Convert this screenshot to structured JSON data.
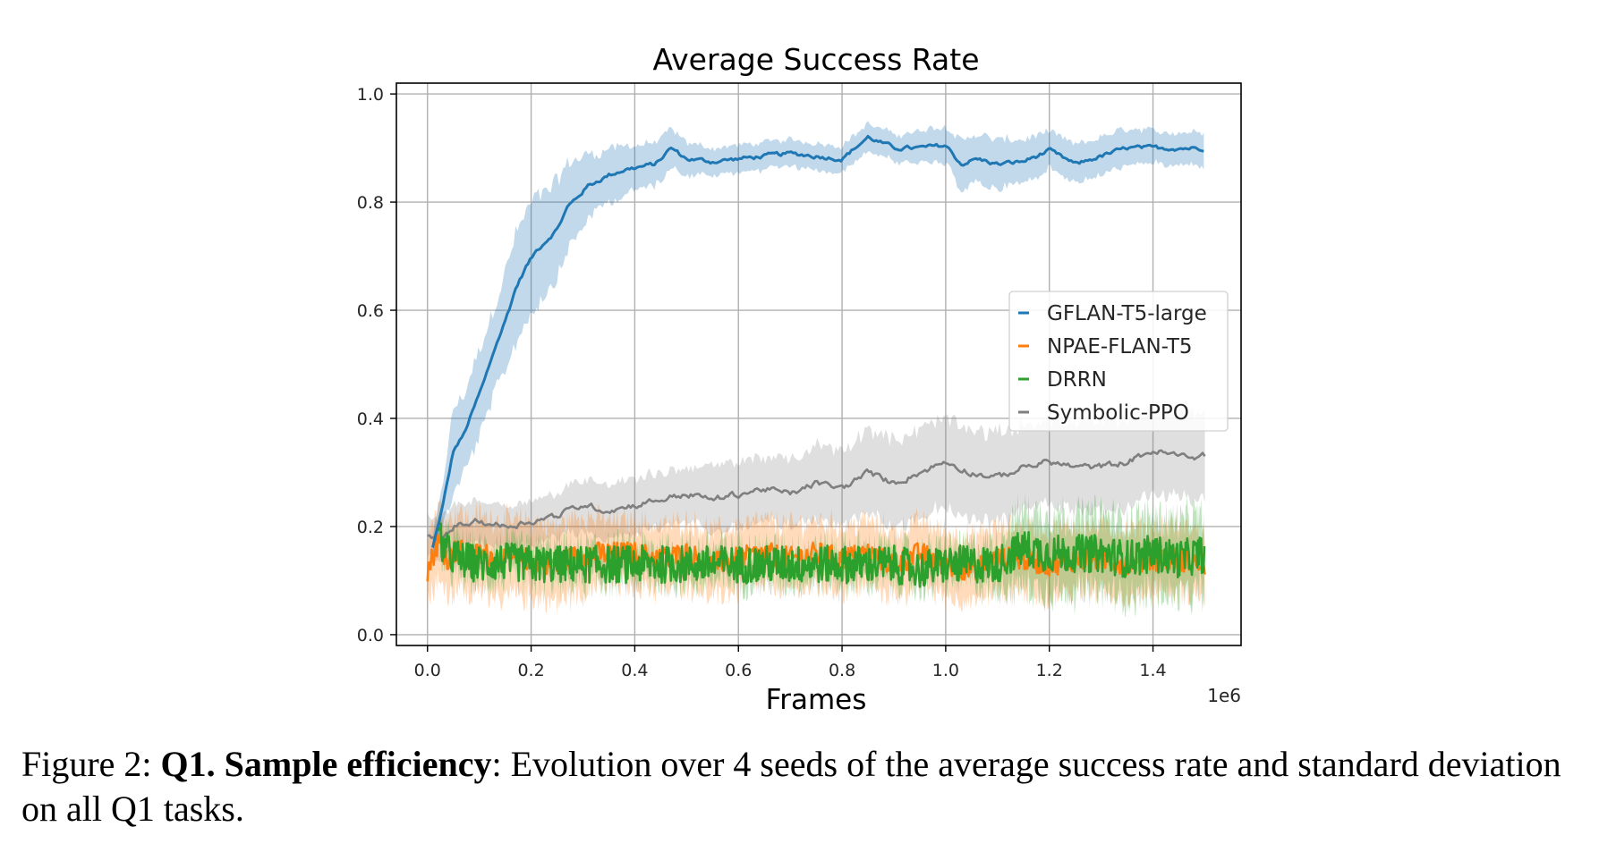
{
  "chart_data": {
    "type": "line",
    "title": "Average Success Rate",
    "xlabel": "Frames",
    "ylabel": "",
    "x_offset_label": "1e6",
    "xlim": [
      -0.06,
      1.57
    ],
    "ylim": [
      -0.02,
      1.02
    ],
    "x_ticks": [
      0.0,
      0.2,
      0.4,
      0.6,
      0.8,
      1.0,
      1.2,
      1.4
    ],
    "x_tick_labels": [
      "0.0",
      "0.2",
      "0.4",
      "0.6",
      "0.8",
      "1.0",
      "1.2",
      "1.4"
    ],
    "y_ticks": [
      0.0,
      0.2,
      0.4,
      0.6,
      0.8,
      1.0
    ],
    "y_tick_labels": [
      "0.0",
      "0.2",
      "0.4",
      "0.6",
      "0.8",
      "1.0"
    ],
    "grid": true,
    "legend_position": "center-right",
    "series": [
      {
        "name": "GFLAN-T5-large",
        "color": "#1f77b4",
        "x": [
          0.01,
          0.03,
          0.05,
          0.07,
          0.09,
          0.11,
          0.13,
          0.15,
          0.17,
          0.19,
          0.21,
          0.23,
          0.25,
          0.27,
          0.29,
          0.31,
          0.33,
          0.35,
          0.38,
          0.41,
          0.44,
          0.47,
          0.5,
          0.55,
          0.6,
          0.65,
          0.7,
          0.75,
          0.8,
          0.85,
          0.9,
          0.95,
          1.0,
          1.03,
          1.06,
          1.1,
          1.15,
          1.2,
          1.25,
          1.3,
          1.35,
          1.4,
          1.45,
          1.5
        ],
        "y": [
          0.16,
          0.24,
          0.34,
          0.37,
          0.42,
          0.47,
          0.53,
          0.58,
          0.64,
          0.68,
          0.71,
          0.73,
          0.75,
          0.79,
          0.81,
          0.83,
          0.84,
          0.85,
          0.86,
          0.865,
          0.87,
          0.9,
          0.88,
          0.875,
          0.88,
          0.885,
          0.89,
          0.885,
          0.88,
          0.92,
          0.9,
          0.9,
          0.905,
          0.87,
          0.88,
          0.87,
          0.875,
          0.895,
          0.87,
          0.885,
          0.9,
          0.9,
          0.9,
          0.9
        ],
        "spread": [
          0.02,
          0.04,
          0.08,
          0.07,
          0.08,
          0.08,
          0.08,
          0.09,
          0.1,
          0.1,
          0.1,
          0.09,
          0.09,
          0.08,
          0.07,
          0.06,
          0.05,
          0.05,
          0.045,
          0.04,
          0.04,
          0.035,
          0.03,
          0.025,
          0.025,
          0.025,
          0.025,
          0.025,
          0.025,
          0.025,
          0.025,
          0.03,
          0.035,
          0.045,
          0.045,
          0.045,
          0.04,
          0.035,
          0.035,
          0.035,
          0.035,
          0.03,
          0.03,
          0.03
        ]
      },
      {
        "name": "NPAE-FLAN-T5",
        "color": "#ff7f0e",
        "x": [
          0.0,
          0.02,
          0.04,
          0.06,
          0.08,
          0.1,
          0.15,
          0.2,
          0.25,
          0.3,
          0.35,
          0.4,
          0.45,
          0.5,
          0.55,
          0.6,
          0.65,
          0.7,
          0.75,
          0.8,
          0.85,
          0.9,
          0.95,
          1.0,
          1.05,
          1.1,
          1.15,
          1.2,
          1.25,
          1.3,
          1.35,
          1.4,
          1.45,
          1.5
        ],
        "y": [
          0.12,
          0.17,
          0.14,
          0.16,
          0.14,
          0.15,
          0.14,
          0.14,
          0.13,
          0.15,
          0.15,
          0.15,
          0.14,
          0.15,
          0.13,
          0.14,
          0.15,
          0.14,
          0.15,
          0.14,
          0.15,
          0.13,
          0.15,
          0.13,
          0.12,
          0.14,
          0.14,
          0.13,
          0.14,
          0.14,
          0.13,
          0.14,
          0.14,
          0.13
        ],
        "spread": [
          0.06,
          0.07,
          0.07,
          0.07,
          0.07,
          0.07,
          0.07,
          0.07,
          0.07,
          0.07,
          0.06,
          0.06,
          0.06,
          0.06,
          0.06,
          0.06,
          0.06,
          0.06,
          0.06,
          0.06,
          0.06,
          0.06,
          0.06,
          0.06,
          0.06,
          0.06,
          0.06,
          0.06,
          0.06,
          0.06,
          0.06,
          0.06,
          0.06,
          0.06
        ]
      },
      {
        "name": "DRRN",
        "color": "#2ca02c",
        "x": [
          0.02,
          0.04,
          0.06,
          0.1,
          0.15,
          0.2,
          0.25,
          0.3,
          0.35,
          0.4,
          0.45,
          0.5,
          0.55,
          0.6,
          0.65,
          0.7,
          0.75,
          0.8,
          0.85,
          0.9,
          0.95,
          1.0,
          1.05,
          1.1,
          1.13,
          1.15,
          1.2,
          1.25,
          1.3,
          1.35,
          1.4,
          1.45,
          1.5
        ],
        "y": [
          0.18,
          0.15,
          0.14,
          0.13,
          0.135,
          0.13,
          0.13,
          0.13,
          0.13,
          0.13,
          0.13,
          0.13,
          0.13,
          0.13,
          0.13,
          0.13,
          0.13,
          0.13,
          0.13,
          0.13,
          0.12,
          0.13,
          0.13,
          0.13,
          0.15,
          0.16,
          0.15,
          0.15,
          0.15,
          0.14,
          0.15,
          0.14,
          0.15
        ],
        "spread": [
          0.02,
          0.03,
          0.03,
          0.03,
          0.03,
          0.03,
          0.03,
          0.03,
          0.03,
          0.03,
          0.03,
          0.03,
          0.03,
          0.03,
          0.03,
          0.03,
          0.03,
          0.03,
          0.03,
          0.03,
          0.03,
          0.03,
          0.03,
          0.04,
          0.06,
          0.07,
          0.07,
          0.07,
          0.07,
          0.07,
          0.07,
          0.07,
          0.07
        ]
      },
      {
        "name": "Symbolic-PPO",
        "color": "#7f7f7f",
        "x": [
          0.0,
          0.02,
          0.05,
          0.1,
          0.15,
          0.2,
          0.25,
          0.3,
          0.35,
          0.4,
          0.45,
          0.5,
          0.55,
          0.6,
          0.65,
          0.7,
          0.75,
          0.8,
          0.85,
          0.9,
          0.95,
          1.0,
          1.05,
          1.1,
          1.15,
          1.2,
          1.25,
          1.3,
          1.35,
          1.4,
          1.45,
          1.5
        ],
        "y": [
          0.18,
          0.17,
          0.2,
          0.21,
          0.2,
          0.21,
          0.22,
          0.24,
          0.23,
          0.24,
          0.25,
          0.26,
          0.25,
          0.26,
          0.27,
          0.26,
          0.28,
          0.27,
          0.3,
          0.28,
          0.3,
          0.32,
          0.3,
          0.29,
          0.31,
          0.32,
          0.31,
          0.31,
          0.32,
          0.34,
          0.33,
          0.33
        ],
        "spread": [
          0.04,
          0.04,
          0.04,
          0.04,
          0.04,
          0.04,
          0.04,
          0.05,
          0.05,
          0.05,
          0.05,
          0.05,
          0.06,
          0.06,
          0.06,
          0.06,
          0.07,
          0.07,
          0.08,
          0.08,
          0.08,
          0.08,
          0.08,
          0.08,
          0.08,
          0.08,
          0.08,
          0.08,
          0.08,
          0.08,
          0.08,
          0.08
        ]
      }
    ]
  },
  "caption": {
    "prefix": "Figure 2: ",
    "bold": "Q1. Sample efficiency",
    "rest": ": Evolution over 4 seeds of the average success rate and standard deviation on all Q1 tasks."
  }
}
